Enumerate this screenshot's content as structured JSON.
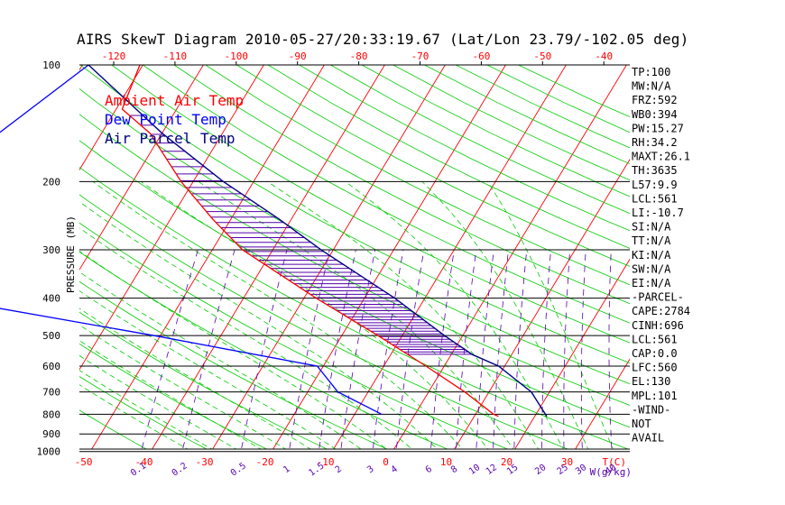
{
  "title": "AIRS SkewT Diagram 2010-05-27/20:33:19.67 (Lat/Lon 23.79/-102.05 deg)",
  "colors": {
    "isotherm": "#ff0000",
    "dry_adiabat": "#00cc00",
    "moist_adiabat": "#00cc00",
    "mixing_ratio": "#5500aa",
    "ambient": "#ff0000",
    "dewpoint": "#0000ff",
    "parcel": "#000080",
    "cape_hatch": "#5500aa",
    "text": "#000000"
  },
  "chart_data": {
    "type": "line",
    "chart_kind": "skew-T log-P diagram",
    "ylabel": "PRESSURE (MB)",
    "y_scale": "log",
    "ylim": [
      1000,
      100
    ],
    "pressure_ticks": [
      100,
      200,
      300,
      400,
      500,
      600,
      700,
      800,
      900,
      1000
    ],
    "top_temp_ticks": [
      -120,
      -110,
      -100,
      -90,
      -80,
      -70,
      -60,
      -50,
      -40
    ],
    "bottom_temp_ticks": [
      -50,
      -40,
      -30,
      -20,
      -10,
      0,
      10,
      20,
      30
    ],
    "bottom_temp_labels": [
      "-50",
      "-40",
      "-30",
      "-20",
      "-10",
      "0",
      "10",
      "20",
      "30"
    ],
    "bottom_axis_label": "T(C)",
    "mixing_ratio_labels": [
      "0.1",
      "0.2",
      "0.5",
      "1",
      "1.5",
      "2",
      "3",
      "4",
      "6",
      "8",
      "10",
      "12",
      "15",
      "20",
      "25",
      "30",
      "40"
    ],
    "mixing_ratio_values": [
      0.1,
      0.2,
      0.5,
      1,
      1.5,
      2,
      3,
      4,
      6,
      8,
      10,
      12,
      15,
      20,
      25,
      30,
      40
    ],
    "mixing_ratio_unit": "W(g/kg)",
    "legend": [
      {
        "text": "Ambient Air Temp",
        "color": "#ff0000"
      },
      {
        "text": "Dew Point Temp",
        "color": "#0000ff"
      },
      {
        "text": "Air Parcel Temp",
        "color": "#000080"
      }
    ],
    "series": [
      {
        "name": "Ambient Air Temp",
        "color": "#ff0000",
        "points": [
          {
            "p": 100,
            "t": -80.5
          },
          {
            "p": 130,
            "t": -79
          },
          {
            "p": 150,
            "t": -72
          },
          {
            "p": 200,
            "t": -62
          },
          {
            "p": 250,
            "t": -53
          },
          {
            "p": 300,
            "t": -45
          },
          {
            "p": 400,
            "t": -28
          },
          {
            "p": 500,
            "t": -14
          },
          {
            "p": 600,
            "t": -3
          },
          {
            "p": 700,
            "t": 6
          },
          {
            "p": 800,
            "t": 13
          },
          {
            "p": 810,
            "t": 14
          }
        ]
      },
      {
        "name": "Dew Point Temp",
        "color": "#0000ff",
        "points": [
          {
            "p": 100,
            "t": -89
          },
          {
            "p": 150,
            "t": -97
          },
          {
            "p": 200,
            "t": -103
          },
          {
            "p": 300,
            "t": -106
          },
          {
            "p": 400,
            "t": -90
          },
          {
            "p": 500,
            "t": -51
          },
          {
            "p": 600,
            "t": -21
          },
          {
            "p": 700,
            "t": -15
          },
          {
            "p": 800,
            "t": -5.5
          }
        ]
      },
      {
        "name": "Air Parcel Temp",
        "color": "#000080",
        "points": [
          {
            "p": 100,
            "t": -89
          },
          {
            "p": 150,
            "t": -70
          },
          {
            "p": 200,
            "t": -55
          },
          {
            "p": 250,
            "t": -42
          },
          {
            "p": 300,
            "t": -32
          },
          {
            "p": 400,
            "t": -15
          },
          {
            "p": 500,
            "t": -3
          },
          {
            "p": 560,
            "t": 3.5
          },
          {
            "p": 600,
            "t": 9
          },
          {
            "p": 700,
            "t": 17
          },
          {
            "p": 810,
            "t": 22
          }
        ]
      }
    ],
    "stats": [
      "TP:100",
      "MW:N/A",
      "FRZ:592",
      "WB0:394",
      "PW:15.27",
      "RH:34.2",
      "MAXT:26.1",
      "TH:3635",
      "L57:9.9",
      "LCL:561",
      "LI:-10.7",
      "SI:N/A",
      "TT:N/A",
      "KI:N/A",
      "SW:N/A",
      "EI:N/A",
      "-PARCEL-",
      "CAPE:2784",
      "CINH:696",
      "LCL:561",
      "CAP:0.0",
      "LFC:560",
      "EL:130",
      "MPL:101",
      "-WIND-",
      "NOT",
      "AVAIL"
    ]
  }
}
